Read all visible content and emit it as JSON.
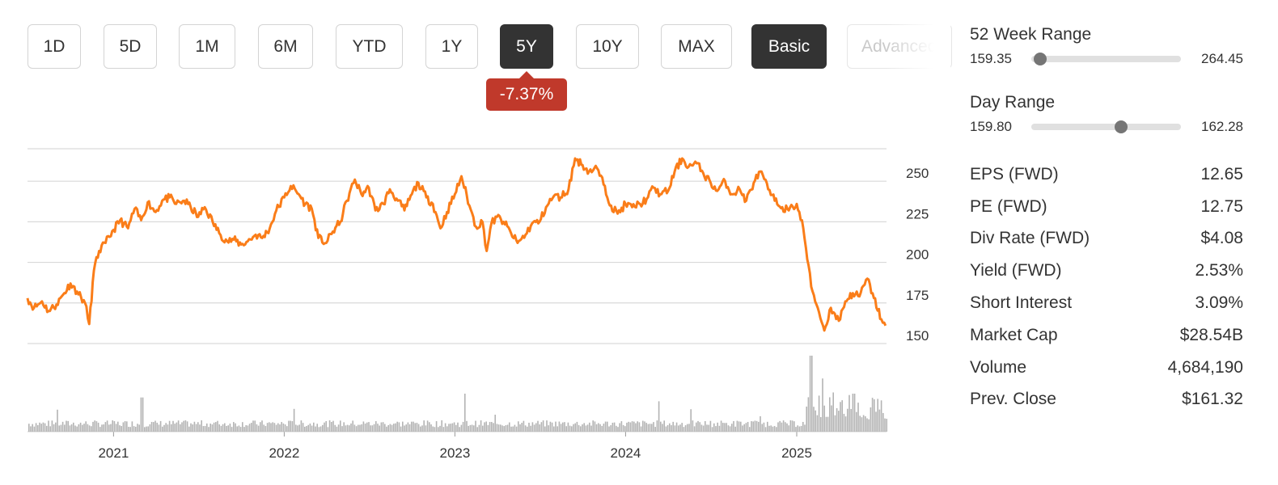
{
  "range_buttons": [
    {
      "label": "1D",
      "active": false
    },
    {
      "label": "5D",
      "active": false
    },
    {
      "label": "1M",
      "active": false
    },
    {
      "label": "6M",
      "active": false
    },
    {
      "label": "YTD",
      "active": false
    },
    {
      "label": "1Y",
      "active": false
    },
    {
      "label": "5Y",
      "active": true
    },
    {
      "label": "10Y",
      "active": false
    },
    {
      "label": "MAX",
      "active": false
    }
  ],
  "view_buttons": {
    "basic": "Basic",
    "advanced": "Advanced"
  },
  "period_change": "-7.37%",
  "colors": {
    "accent": "#fa7d19",
    "negative": "#c0392b",
    "active_button": "#333333",
    "volume": "#b3b3b3",
    "grid": "#d9d9d9"
  },
  "stats": {
    "week52": {
      "label": "52 Week Range",
      "low": "159.35",
      "high": "264.45",
      "position": 0.06
    },
    "day": {
      "label": "Day Range",
      "low": "159.80",
      "high": "162.28",
      "position": 0.6
    },
    "rows": [
      {
        "label": "EPS (FWD)",
        "value": "12.65"
      },
      {
        "label": "PE (FWD)",
        "value": "12.75"
      },
      {
        "label": "Div Rate (FWD)",
        "value": "$4.08"
      },
      {
        "label": "Yield (FWD)",
        "value": "2.53%"
      },
      {
        "label": "Short Interest",
        "value": "3.09%"
      },
      {
        "label": "Market Cap",
        "value": "$28.54B"
      },
      {
        "label": "Volume",
        "value": "4,684,190"
      },
      {
        "label": "Prev. Close",
        "value": "$161.32"
      }
    ]
  },
  "chart_data": {
    "type": "line",
    "series": [
      {
        "values": [
          [
            "2020-07-01",
            178
          ],
          [
            "2020-07-15",
            172
          ],
          [
            "2020-08-01",
            176
          ],
          [
            "2020-08-15",
            170
          ],
          [
            "2020-09-01",
            174
          ],
          [
            "2020-09-15",
            180
          ],
          [
            "2020-10-01",
            187
          ],
          [
            "2020-10-15",
            182
          ],
          [
            "2020-11-01",
            175
          ],
          [
            "2020-11-10",
            162
          ],
          [
            "2020-11-20",
            195
          ],
          [
            "2020-12-01",
            207
          ],
          [
            "2020-12-15",
            212
          ],
          [
            "2021-01-01",
            220
          ],
          [
            "2021-01-15",
            226
          ],
          [
            "2021-02-01",
            221
          ],
          [
            "2021-02-15",
            233
          ],
          [
            "2021-03-01",
            226
          ],
          [
            "2021-03-15",
            237
          ],
          [
            "2021-04-01",
            231
          ],
          [
            "2021-04-15",
            238
          ],
          [
            "2021-05-01",
            240
          ],
          [
            "2021-05-15",
            236
          ],
          [
            "2021-06-01",
            238
          ],
          [
            "2021-06-15",
            234
          ],
          [
            "2021-07-01",
            228
          ],
          [
            "2021-07-15",
            234
          ],
          [
            "2021-08-01",
            225
          ],
          [
            "2021-08-15",
            218
          ],
          [
            "2021-09-01",
            213
          ],
          [
            "2021-09-15",
            214
          ],
          [
            "2021-10-01",
            211
          ],
          [
            "2021-10-15",
            213
          ],
          [
            "2021-11-01",
            217
          ],
          [
            "2021-11-15",
            215
          ],
          [
            "2021-12-01",
            221
          ],
          [
            "2021-12-15",
            232
          ],
          [
            "2022-01-01",
            240
          ],
          [
            "2022-01-15",
            247
          ],
          [
            "2022-02-01",
            242
          ],
          [
            "2022-02-15",
            236
          ],
          [
            "2022-03-01",
            233
          ],
          [
            "2022-03-15",
            215
          ],
          [
            "2022-04-01",
            212
          ],
          [
            "2022-04-15",
            219
          ],
          [
            "2022-05-01",
            225
          ],
          [
            "2022-05-15",
            238
          ],
          [
            "2022-06-01",
            251
          ],
          [
            "2022-06-15",
            242
          ],
          [
            "2022-07-01",
            246
          ],
          [
            "2022-07-15",
            232
          ],
          [
            "2022-08-01",
            236
          ],
          [
            "2022-08-15",
            245
          ],
          [
            "2022-09-01",
            238
          ],
          [
            "2022-09-15",
            232
          ],
          [
            "2022-10-01",
            242
          ],
          [
            "2022-10-15",
            249
          ],
          [
            "2022-11-01",
            240
          ],
          [
            "2022-11-15",
            236
          ],
          [
            "2022-12-01",
            221
          ],
          [
            "2022-12-15",
            231
          ],
          [
            "2023-01-01",
            242
          ],
          [
            "2023-01-15",
            253
          ],
          [
            "2023-02-01",
            235
          ],
          [
            "2023-02-15",
            222
          ],
          [
            "2023-03-01",
            225
          ],
          [
            "2023-03-10",
            207
          ],
          [
            "2023-03-20",
            224
          ],
          [
            "2023-04-01",
            228
          ],
          [
            "2023-04-15",
            225
          ],
          [
            "2023-05-01",
            218
          ],
          [
            "2023-05-15",
            212
          ],
          [
            "2023-06-01",
            217
          ],
          [
            "2023-06-15",
            224
          ],
          [
            "2023-07-01",
            225
          ],
          [
            "2023-07-15",
            234
          ],
          [
            "2023-08-01",
            241
          ],
          [
            "2023-08-15",
            240
          ],
          [
            "2023-09-01",
            245
          ],
          [
            "2023-09-15",
            264
          ],
          [
            "2023-10-01",
            260
          ],
          [
            "2023-10-15",
            256
          ],
          [
            "2023-11-01",
            258
          ],
          [
            "2023-11-15",
            248
          ],
          [
            "2023-12-01",
            235
          ],
          [
            "2023-12-15",
            230
          ],
          [
            "2024-01-01",
            236
          ],
          [
            "2024-01-15",
            234
          ],
          [
            "2024-02-01",
            236
          ],
          [
            "2024-02-15",
            239
          ],
          [
            "2024-03-01",
            246
          ],
          [
            "2024-03-15",
            242
          ],
          [
            "2024-04-01",
            244
          ],
          [
            "2024-04-15",
            256
          ],
          [
            "2024-05-01",
            264
          ],
          [
            "2024-05-15",
            259
          ],
          [
            "2024-06-01",
            261
          ],
          [
            "2024-06-15",
            255
          ],
          [
            "2024-07-01",
            249
          ],
          [
            "2024-07-15",
            244
          ],
          [
            "2024-08-01",
            250
          ],
          [
            "2024-08-15",
            242
          ],
          [
            "2024-09-01",
            245
          ],
          [
            "2024-09-15",
            238
          ],
          [
            "2024-10-01",
            249
          ],
          [
            "2024-10-15",
            256
          ],
          [
            "2024-11-01",
            245
          ],
          [
            "2024-11-15",
            238
          ],
          [
            "2024-12-01",
            234
          ],
          [
            "2024-12-15",
            232
          ],
          [
            "2025-01-01",
            236
          ],
          [
            "2025-01-15",
            221
          ],
          [
            "2025-02-01",
            185
          ],
          [
            "2025-02-15",
            172
          ],
          [
            "2025-03-01",
            158
          ],
          [
            "2025-03-15",
            172
          ],
          [
            "2025-04-01",
            164
          ],
          [
            "2025-04-15",
            176
          ],
          [
            "2025-05-01",
            181
          ],
          [
            "2025-05-15",
            179
          ],
          [
            "2025-06-01",
            190
          ],
          [
            "2025-06-15",
            178
          ],
          [
            "2025-07-01",
            165
          ],
          [
            "2025-07-10",
            161
          ]
        ]
      }
    ],
    "x_ticks": [
      "2021",
      "2022",
      "2023",
      "2024",
      "2025"
    ],
    "y_ticks": [
      150,
      175,
      200,
      225,
      250
    ],
    "ylim": [
      147.5,
      270
    ],
    "grid": true,
    "volume": {
      "baseline_fraction": 0.1,
      "spikes": [
        [
          "2021-03-01",
          0.45
        ],
        [
          "2022-01-20",
          0.3
        ],
        [
          "2023-01-20",
          0.5
        ],
        [
          "2024-03-10",
          0.4
        ],
        [
          "2025-01-30",
          1.0
        ],
        [
          "2025-02-25",
          0.7
        ],
        [
          "2025-05-01",
          0.5
        ]
      ]
    }
  }
}
